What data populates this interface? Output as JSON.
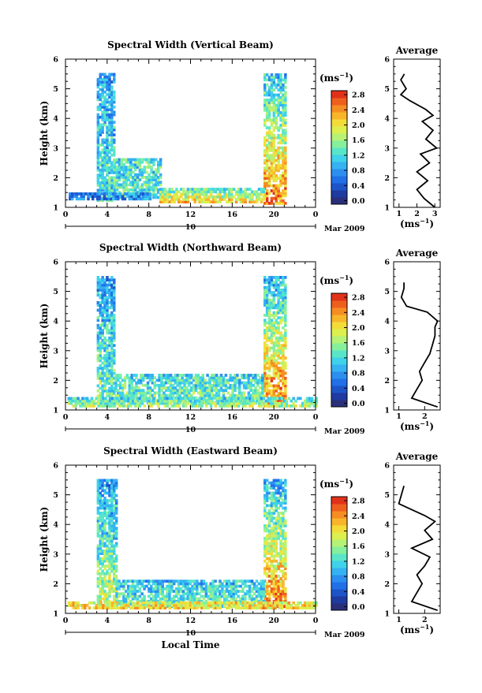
{
  "figure": {
    "xlabel": "Local Time",
    "date_label": "Mar 2009",
    "day_label": "10",
    "colorbar_unit": "(ms",
    "colorbar_unit_exp": "−1",
    "avg_title": "Average",
    "avg_xlabel": "(ms",
    "avg_xlabel_exp": "−1",
    "colors": [
      "#2a2f7a",
      "#1f3aa0",
      "#1d55c8",
      "#2170e8",
      "#2c8ff0",
      "#35b2f2",
      "#3fd2ea",
      "#59e6c8",
      "#86ef9c",
      "#b5f276",
      "#dcef4e",
      "#f4dc38",
      "#f8b52a",
      "#f68d22",
      "#ee5f1e",
      "#e13219"
    ]
  },
  "chart_data": [
    {
      "type": "heatmap",
      "title": "Spectral Width (Vertical Beam)",
      "xlabel": "",
      "ylabel": "Height (km)",
      "xlim": [
        0,
        24
      ],
      "ylim": [
        1,
        6
      ],
      "x_ticks": [
        "0",
        "4",
        "8",
        "12",
        "16",
        "20",
        "0"
      ],
      "y_ticks": [
        "1",
        "2",
        "3",
        "4",
        "5",
        "6"
      ],
      "colorbar": {
        "ticks": [
          "0.0",
          "0.4",
          "0.8",
          "1.2",
          "1.6",
          "2.0",
          "2.4",
          "2.8"
        ],
        "range": [
          0,
          3.0
        ]
      },
      "regions": [
        {
          "x": [
            3.0,
            4.6
          ],
          "y": [
            1.2,
            5.5
          ],
          "value_bottom": 1.4,
          "value_top": 0.9
        },
        {
          "x": [
            19.0,
            21.0
          ],
          "y": [
            1.1,
            5.5
          ],
          "value_bottom": 2.6,
          "value_top": 1.1
        },
        {
          "x": [
            4.6,
            9.0
          ],
          "y": [
            1.3,
            2.6
          ],
          "value_bottom": 1.4,
          "value_top": 1.3
        },
        {
          "x": [
            0.3,
            8.0
          ],
          "y": [
            1.25,
            1.45
          ],
          "value_bottom": 0.8,
          "value_top": 0.8
        },
        {
          "x": [
            9.0,
            19.0
          ],
          "y": [
            1.15,
            1.6
          ],
          "value_bottom": 2.2,
          "value_top": 1.4
        }
      ],
      "average": {
        "xlim": [
          0.7,
          3.3
        ],
        "x_ticks": [
          "1",
          "2",
          "3"
        ],
        "y_ticks": [
          "1",
          "2",
          "3",
          "4",
          "5",
          "6"
        ],
        "y": [
          1.0,
          1.3,
          1.6,
          1.9,
          2.2,
          2.5,
          2.8,
          3.0,
          3.3,
          3.6,
          3.9,
          4.1,
          4.3,
          4.6,
          4.8,
          5.0,
          5.3,
          5.5
        ],
        "x": [
          3.0,
          2.4,
          2.0,
          2.6,
          2.0,
          2.7,
          2.2,
          3.1,
          2.5,
          2.9,
          2.3,
          2.9,
          2.5,
          1.6,
          1.1,
          1.4,
          1.1,
          1.3
        ]
      }
    },
    {
      "type": "heatmap",
      "title": "Spectral Width (Northward Beam)",
      "xlabel": "",
      "ylabel": "Height (km)",
      "xlim": [
        0,
        24
      ],
      "ylim": [
        1,
        6
      ],
      "x_ticks": [
        "0",
        "4",
        "8",
        "12",
        "16",
        "20",
        "0"
      ],
      "y_ticks": [
        "1",
        "2",
        "3",
        "4",
        "5",
        "6"
      ],
      "colorbar": {
        "ticks": [
          "0.0",
          "0.4",
          "0.8",
          "1.2",
          "1.6",
          "2.0",
          "2.4",
          "2.8"
        ],
        "range": [
          0,
          3.0
        ]
      },
      "regions": [
        {
          "x": [
            3.0,
            4.7
          ],
          "y": [
            1.1,
            5.5
          ],
          "value_bottom": 1.6,
          "value_top": 0.9
        },
        {
          "x": [
            19.0,
            21.0
          ],
          "y": [
            1.1,
            5.5
          ],
          "value_bottom": 2.7,
          "value_top": 1.0
        },
        {
          "x": [
            4.7,
            19.0
          ],
          "y": [
            1.2,
            2.2
          ],
          "value_bottom": 1.6,
          "value_top": 1.2
        },
        {
          "x": [
            0.2,
            24.0
          ],
          "y": [
            1.1,
            1.4
          ],
          "value_bottom": 1.8,
          "value_top": 1.2
        }
      ],
      "average": {
        "xlim": [
          0.8,
          2.6
        ],
        "x_ticks": [
          "1",
          "2"
        ],
        "y_ticks": [
          "1",
          "2",
          "3",
          "4",
          "5",
          "6"
        ],
        "y": [
          1.1,
          1.4,
          1.7,
          2.0,
          2.3,
          2.6,
          2.9,
          3.2,
          3.5,
          3.8,
          4.0,
          4.3,
          4.5,
          4.8,
          5.1,
          5.3
        ],
        "x": [
          2.5,
          1.5,
          1.7,
          1.9,
          1.8,
          2.0,
          2.2,
          2.3,
          2.4,
          2.4,
          2.5,
          2.1,
          1.3,
          1.1,
          1.2,
          1.2
        ]
      }
    },
    {
      "type": "heatmap",
      "title": "Spectral Width (Eastward Beam)",
      "xlabel": "Local Time",
      "ylabel": "Height (km)",
      "xlim": [
        0,
        24
      ],
      "ylim": [
        1,
        6
      ],
      "x_ticks": [
        "0",
        "4",
        "8",
        "12",
        "16",
        "20",
        "0"
      ],
      "y_ticks": [
        "1",
        "2",
        "3",
        "4",
        "5",
        "6"
      ],
      "colorbar": {
        "ticks": [
          "0.0",
          "0.4",
          "0.8",
          "1.2",
          "1.6",
          "2.0",
          "2.4",
          "2.8"
        ],
        "range": [
          0,
          3.0
        ]
      },
      "regions": [
        {
          "x": [
            3.0,
            4.8
          ],
          "y": [
            1.2,
            5.5
          ],
          "value_bottom": 1.9,
          "value_top": 0.9
        },
        {
          "x": [
            19.0,
            21.0
          ],
          "y": [
            1.2,
            5.5
          ],
          "value_bottom": 2.6,
          "value_top": 1.0
        },
        {
          "x": [
            4.8,
            19.0
          ],
          "y": [
            1.2,
            2.1
          ],
          "value_bottom": 1.5,
          "value_top": 1.1
        },
        {
          "x": [
            0.2,
            24.0
          ],
          "y": [
            1.15,
            1.35
          ],
          "value_bottom": 2.2,
          "value_top": 2.0
        }
      ],
      "average": {
        "xlim": [
          0.8,
          2.6
        ],
        "x_ticks": [
          "1",
          "2"
        ],
        "y_ticks": [
          "1",
          "2",
          "3",
          "4",
          "5",
          "6"
        ],
        "y": [
          1.1,
          1.4,
          1.7,
          2.0,
          2.3,
          2.6,
          2.9,
          3.2,
          3.5,
          3.8,
          4.1,
          4.3,
          4.5,
          4.7,
          5.0,
          5.3
        ],
        "x": [
          2.5,
          1.5,
          1.7,
          1.9,
          1.7,
          2.0,
          2.2,
          1.5,
          2.3,
          2.0,
          2.4,
          2.0,
          1.5,
          1.0,
          1.1,
          1.2
        ]
      }
    }
  ]
}
